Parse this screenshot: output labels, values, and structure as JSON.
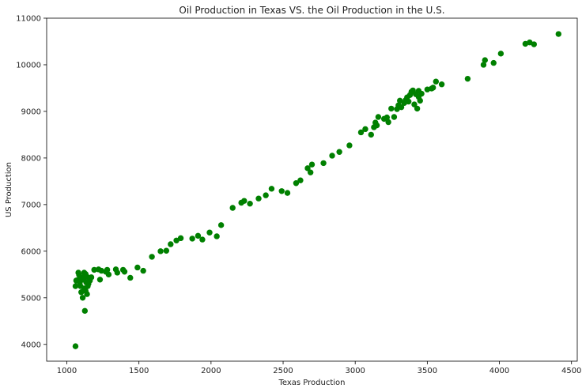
{
  "chart_data": {
    "type": "scatter",
    "title": "Oil Production in Texas VS. the Oil Production in the U.S.",
    "xlabel": "Texas Production",
    "ylabel": "US Production",
    "xlim": [
      860,
      4540
    ],
    "ylim": [
      3640,
      11000
    ],
    "xticks": [
      1000,
      1500,
      2000,
      2500,
      3000,
      3500,
      4000,
      4500
    ],
    "yticks": [
      4000,
      5000,
      6000,
      7000,
      8000,
      9000,
      10000,
      11000
    ],
    "grid": false,
    "marker_color": "#008000",
    "points": [
      [
        1060,
        3960
      ],
      [
        1060,
        5250
      ],
      [
        1065,
        5370
      ],
      [
        1075,
        5380
      ],
      [
        1080,
        5540
      ],
      [
        1085,
        5490
      ],
      [
        1090,
        5330
      ],
      [
        1095,
        5250
      ],
      [
        1100,
        5120
      ],
      [
        1105,
        5430
      ],
      [
        1110,
        5000
      ],
      [
        1115,
        5390
      ],
      [
        1120,
        5540
      ],
      [
        1120,
        5200
      ],
      [
        1125,
        4720
      ],
      [
        1130,
        5510
      ],
      [
        1130,
        5150
      ],
      [
        1135,
        5330
      ],
      [
        1140,
        5450
      ],
      [
        1140,
        5080
      ],
      [
        1145,
        5250
      ],
      [
        1150,
        5300
      ],
      [
        1160,
        5370
      ],
      [
        1170,
        5440
      ],
      [
        1190,
        5600
      ],
      [
        1220,
        5610
      ],
      [
        1230,
        5390
      ],
      [
        1240,
        5580
      ],
      [
        1270,
        5560
      ],
      [
        1280,
        5600
      ],
      [
        1290,
        5500
      ],
      [
        1340,
        5610
      ],
      [
        1350,
        5540
      ],
      [
        1390,
        5600
      ],
      [
        1400,
        5560
      ],
      [
        1440,
        5430
      ],
      [
        1490,
        5650
      ],
      [
        1530,
        5580
      ],
      [
        1590,
        5880
      ],
      [
        1650,
        6000
      ],
      [
        1690,
        6010
      ],
      [
        1720,
        6150
      ],
      [
        1760,
        6230
      ],
      [
        1790,
        6280
      ],
      [
        1870,
        6270
      ],
      [
        1910,
        6330
      ],
      [
        1940,
        6250
      ],
      [
        1990,
        6400
      ],
      [
        2040,
        6320
      ],
      [
        2070,
        6560
      ],
      [
        2150,
        6930
      ],
      [
        2210,
        7040
      ],
      [
        2230,
        7080
      ],
      [
        2270,
        7020
      ],
      [
        2330,
        7130
      ],
      [
        2380,
        7200
      ],
      [
        2420,
        7340
      ],
      [
        2490,
        7290
      ],
      [
        2530,
        7250
      ],
      [
        2590,
        7460
      ],
      [
        2620,
        7520
      ],
      [
        2670,
        7780
      ],
      [
        2690,
        7690
      ],
      [
        2700,
        7860
      ],
      [
        2780,
        7890
      ],
      [
        2840,
        8050
      ],
      [
        2890,
        8130
      ],
      [
        2960,
        8270
      ],
      [
        3040,
        8550
      ],
      [
        3070,
        8620
      ],
      [
        3110,
        8500
      ],
      [
        3130,
        8660
      ],
      [
        3140,
        8760
      ],
      [
        3150,
        8700
      ],
      [
        3160,
        8880
      ],
      [
        3200,
        8840
      ],
      [
        3220,
        8870
      ],
      [
        3230,
        8770
      ],
      [
        3250,
        9060
      ],
      [
        3270,
        8880
      ],
      [
        3290,
        9050
      ],
      [
        3300,
        9130
      ],
      [
        3310,
        9230
      ],
      [
        3320,
        9090
      ],
      [
        3340,
        9180
      ],
      [
        3350,
        9240
      ],
      [
        3360,
        9300
      ],
      [
        3370,
        9210
      ],
      [
        3380,
        9350
      ],
      [
        3390,
        9420
      ],
      [
        3400,
        9450
      ],
      [
        3410,
        9150
      ],
      [
        3420,
        9370
      ],
      [
        3430,
        9060
      ],
      [
        3440,
        9440
      ],
      [
        3440,
        9310
      ],
      [
        3450,
        9230
      ],
      [
        3460,
        9380
      ],
      [
        3500,
        9470
      ],
      [
        3530,
        9490
      ],
      [
        3540,
        9510
      ],
      [
        3560,
        9640
      ],
      [
        3600,
        9580
      ],
      [
        3780,
        9700
      ],
      [
        3890,
        10000
      ],
      [
        3900,
        10100
      ],
      [
        3960,
        10040
      ],
      [
        4010,
        10240
      ],
      [
        4180,
        10450
      ],
      [
        4210,
        10480
      ],
      [
        4240,
        10440
      ],
      [
        4410,
        10660
      ]
    ]
  }
}
